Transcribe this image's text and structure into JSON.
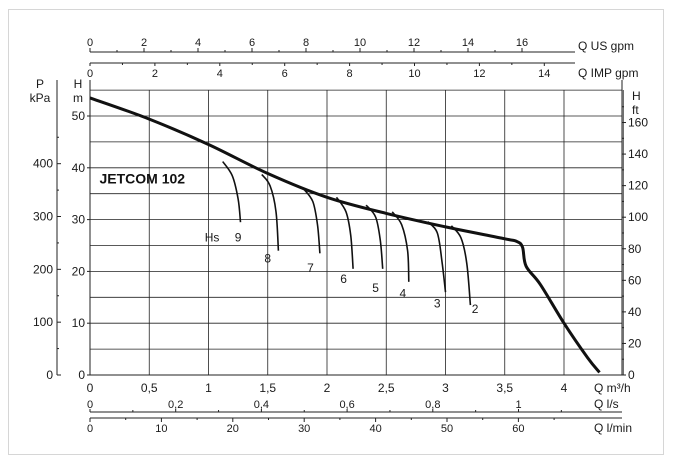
{
  "chart_data": {
    "type": "line",
    "title": "JETCOM 102",
    "x_main": {
      "label": "Q m³/h",
      "range": [
        0,
        4.5
      ],
      "ticks": [
        0,
        0.5,
        1,
        1.5,
        2,
        2.5,
        3,
        3.5,
        4
      ],
      "tick_labels": [
        "0",
        "0,5",
        "1",
        "1,5",
        "2",
        "2,5",
        "3",
        "3,5",
        "4"
      ]
    },
    "x_ls": {
      "label": "Q l/s",
      "ticks": [
        0,
        0.2,
        0.4,
        0.6,
        0.8,
        1
      ],
      "tick_labels": [
        "0",
        "0,2",
        "0,4",
        "0,6",
        "0,8",
        "1"
      ]
    },
    "x_lmin": {
      "label": "Q l/min",
      "ticks": [
        0,
        10,
        20,
        30,
        40,
        50,
        60
      ],
      "tick_labels": [
        "0",
        "10",
        "20",
        "30",
        "40",
        "50",
        "60"
      ]
    },
    "x_usgpm": {
      "label": "Q US gpm",
      "ticks": [
        0,
        2,
        4,
        6,
        8,
        10,
        12,
        14,
        16
      ],
      "tick_labels": [
        "0",
        "2",
        "4",
        "6",
        "8",
        "10",
        "12",
        "14",
        "16"
      ]
    },
    "x_impgpm": {
      "label": "Q IMP gpm",
      "ticks": [
        0,
        2,
        4,
        6,
        8,
        10,
        12,
        14
      ],
      "tick_labels": [
        "0",
        "2",
        "4",
        "6",
        "8",
        "10",
        "12",
        "14"
      ]
    },
    "y_m": {
      "label": "H\nm",
      "range": [
        0,
        55
      ],
      "ticks": [
        0,
        10,
        20,
        30,
        40,
        50
      ],
      "tick_labels": [
        "0",
        "10",
        "20",
        "30",
        "40",
        "50"
      ]
    },
    "y_kpa": {
      "label": "P\nkPa",
      "ticks": [
        0,
        100,
        200,
        300,
        400
      ],
      "tick_labels": [
        "0",
        "100",
        "200",
        "300",
        "400"
      ]
    },
    "y_ft": {
      "label": "H\nft",
      "ticks": [
        0,
        20,
        40,
        60,
        80,
        100,
        120,
        140,
        160
      ],
      "tick_labels": [
        "0",
        "20",
        "40",
        "60",
        "80",
        "100",
        "120",
        "140",
        "160"
      ]
    },
    "grid": true,
    "series": [
      {
        "name": "JETCOM 102",
        "points": [
          [
            0,
            53.5
          ],
          [
            0.5,
            49.4
          ],
          [
            1,
            44.5
          ],
          [
            1.5,
            38.9
          ],
          [
            2,
            34.3
          ],
          [
            2.5,
            31.2
          ],
          [
            3,
            28.6
          ],
          [
            3.5,
            26.3
          ],
          [
            3.6,
            25.8
          ],
          [
            3.65,
            24.7
          ],
          [
            3.68,
            21
          ],
          [
            3.8,
            17.5
          ],
          [
            4,
            10
          ],
          [
            4.2,
            3.3
          ],
          [
            4.3,
            0.5
          ]
        ]
      },
      {
        "name": "9",
        "points": [
          [
            1.12,
            41.2
          ],
          [
            1.2,
            38.5
          ],
          [
            1.25,
            34
          ],
          [
            1.27,
            29.5
          ]
        ]
      },
      {
        "name": "8",
        "points": [
          [
            1.45,
            38.7
          ],
          [
            1.52,
            36.5
          ],
          [
            1.57,
            31.5
          ],
          [
            1.59,
            24
          ]
        ]
      },
      {
        "name": "7",
        "points": [
          [
            1.8,
            36
          ],
          [
            1.88,
            33.5
          ],
          [
            1.92,
            29
          ],
          [
            1.94,
            23.5
          ]
        ]
      },
      {
        "name": "6",
        "points": [
          [
            2.08,
            34.3
          ],
          [
            2.16,
            31.5
          ],
          [
            2.2,
            27
          ],
          [
            2.22,
            20.5
          ]
        ]
      },
      {
        "name": "5",
        "points": [
          [
            2.33,
            32.8
          ],
          [
            2.41,
            30.5
          ],
          [
            2.45,
            26
          ],
          [
            2.47,
            20.5
          ]
        ]
      },
      {
        "name": "4",
        "points": [
          [
            2.55,
            31.5
          ],
          [
            2.63,
            29
          ],
          [
            2.68,
            24
          ],
          [
            2.69,
            18
          ]
        ]
      },
      {
        "name": "3",
        "points": [
          [
            2.85,
            29.6
          ],
          [
            2.93,
            27.5
          ],
          [
            2.97,
            22
          ],
          [
            3,
            16
          ]
        ]
      },
      {
        "name": "2",
        "points": [
          [
            3.05,
            28.8
          ],
          [
            3.13,
            26.5
          ],
          [
            3.18,
            21.5
          ],
          [
            3.21,
            13.5
          ]
        ]
      }
    ],
    "annotations": [
      {
        "text": "Hs",
        "x": 1.03,
        "y": 26.5
      },
      {
        "text": "9",
        "x": 1.25,
        "y": 26.5
      },
      {
        "text": "8",
        "x": 1.5,
        "y": 22.5
      },
      {
        "text": "7",
        "x": 1.86,
        "y": 20.7
      },
      {
        "text": "6",
        "x": 2.14,
        "y": 18.5
      },
      {
        "text": "5",
        "x": 2.41,
        "y": 16.8
      },
      {
        "text": "4",
        "x": 2.64,
        "y": 15.7
      },
      {
        "text": "3",
        "x": 2.93,
        "y": 13.8
      },
      {
        "text": "2",
        "x": 3.25,
        "y": 12.7
      }
    ]
  }
}
